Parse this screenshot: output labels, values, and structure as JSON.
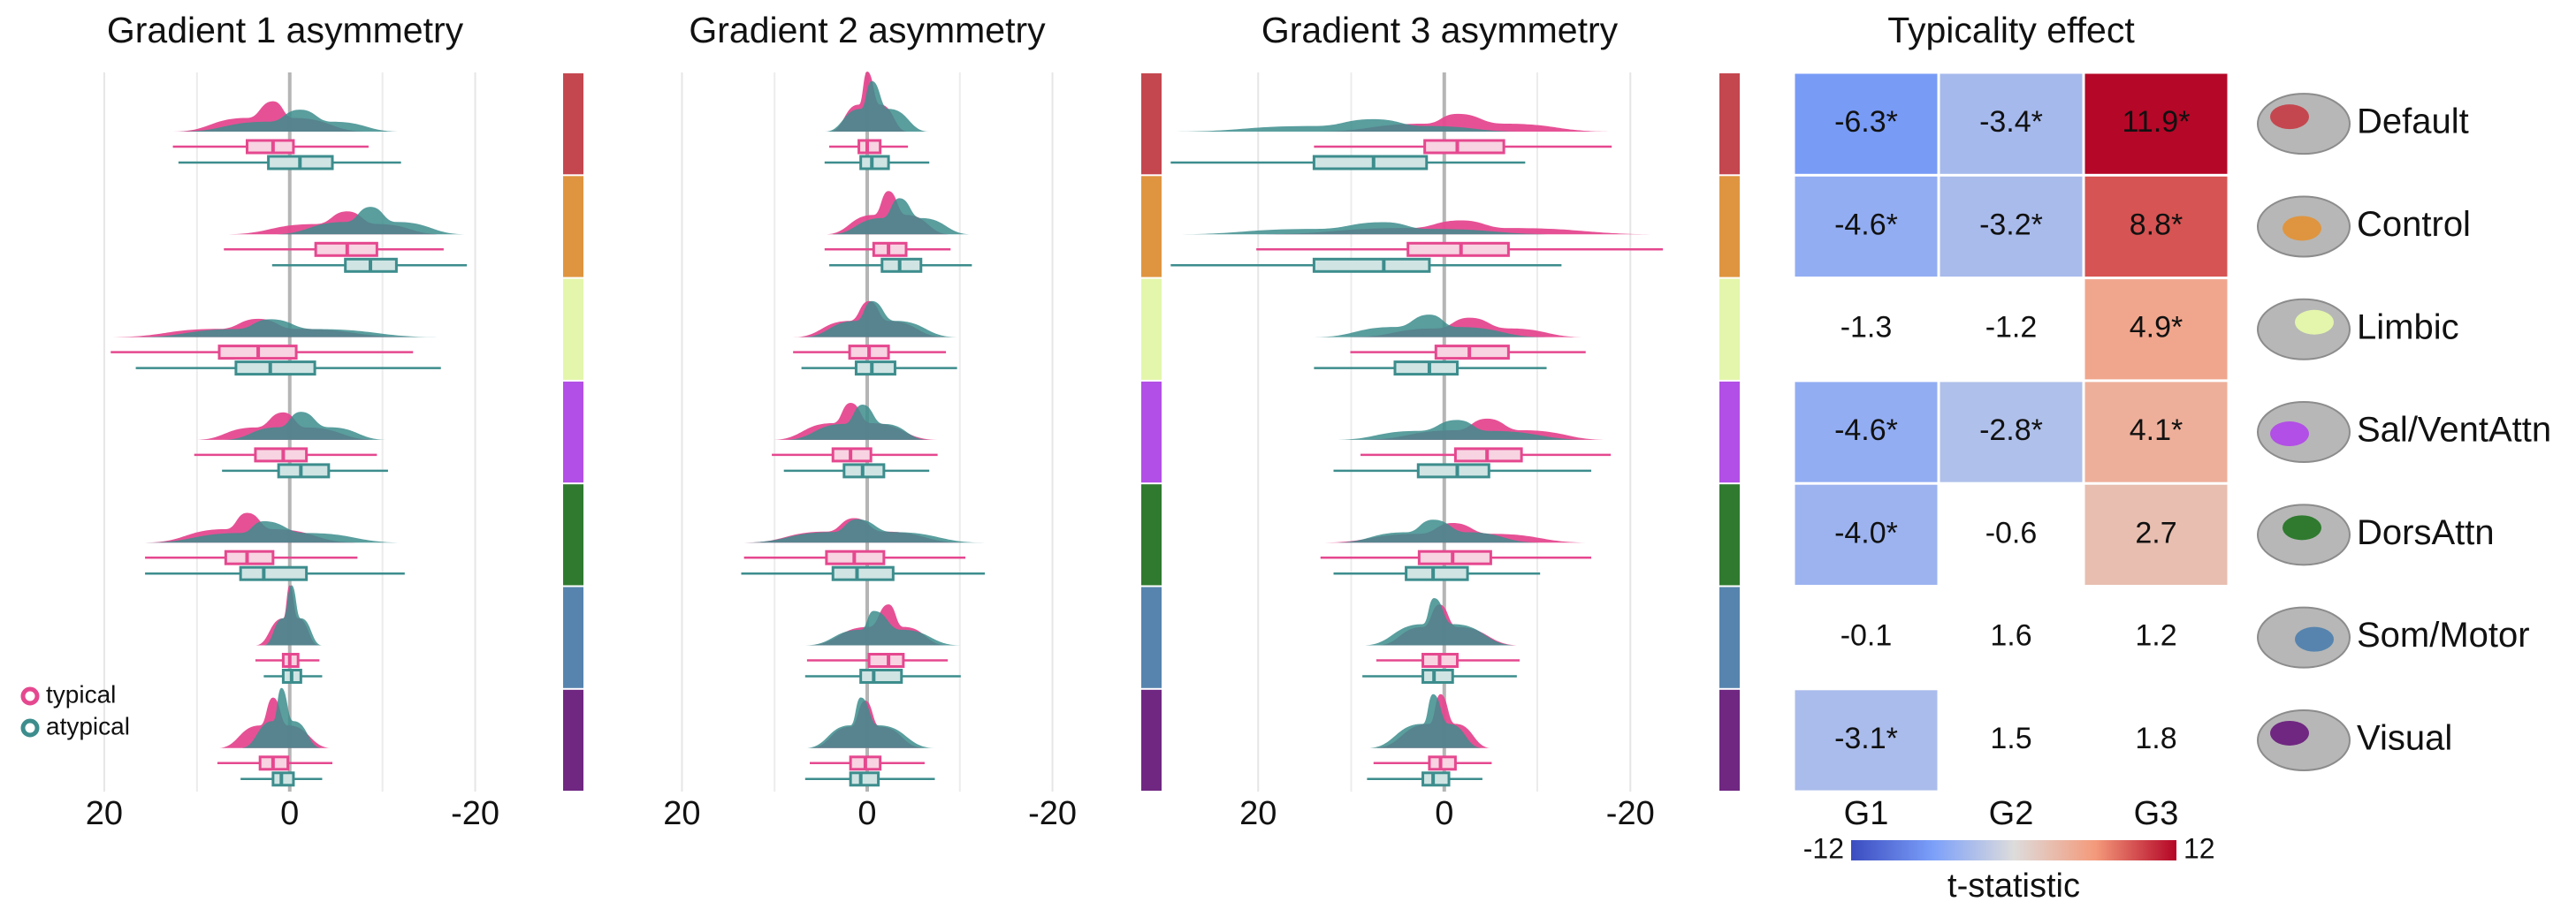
{
  "chart_data": [
    {
      "type": "raincloud",
      "title": "Gradient 1 asymmetry",
      "xlim": [
        28,
        -27
      ],
      "xticks": [
        20,
        0,
        -20
      ],
      "minor_xticks": [
        10,
        -10
      ],
      "grid": true,
      "legend": "lower left",
      "series": [
        {
          "name": "typical",
          "color": "#e5488f",
          "box_fill": "#f8d3e1",
          "boxes": [
            [
              12.6,
              4.6,
              1.8,
              -0.4,
              -8.5
            ],
            [
              7.1,
              -2.8,
              -6.2,
              -9.4,
              -16.6
            ],
            [
              19.3,
              7.6,
              3.4,
              -0.7,
              -13.3
            ],
            [
              10.3,
              3.7,
              0.7,
              -1.8,
              -9.4
            ],
            [
              15.6,
              6.9,
              4.6,
              1.8,
              -7.3
            ],
            [
              3.7,
              0.7,
              0,
              -0.9,
              -3.2
            ],
            [
              7.8,
              3.2,
              1.8,
              0.2,
              -4.6
            ]
          ]
        },
        {
          "name": "atypical",
          "color": "#3d8d8d",
          "box_fill": "#d0e4e4",
          "boxes": [
            [
              12,
              2.3,
              -1.1,
              -4.6,
              -12
            ],
            [
              1.9,
              -6,
              -8.7,
              -11.5,
              -19.1
            ],
            [
              16.6,
              5.8,
              2.1,
              -2.7,
              -16.3
            ],
            [
              7.3,
              1.2,
              -1.2,
              -4.2,
              -10.6
            ],
            [
              15.6,
              5.3,
              2.8,
              -1.8,
              -12.4
            ],
            [
              2.8,
              0.7,
              -0.2,
              -1.2,
              -3.5
            ],
            [
              5.3,
              1.8,
              0.9,
              -0.4,
              -3.5
            ]
          ]
        }
      ]
    },
    {
      "type": "raincloud",
      "title": "Gradient 2 asymmetry",
      "xlim": [
        23,
        -23
      ],
      "xticks": [
        20,
        0,
        -20
      ],
      "minor_xticks": [
        10,
        -10
      ],
      "grid": true,
      "series": [
        {
          "name": "typical",
          "color": "#e5488f",
          "box_fill": "#f8d3e1",
          "boxes": [
            [
              4.1,
              0.9,
              0,
              -1.4,
              -4.4
            ],
            [
              4.6,
              -0.7,
              -2.3,
              -4.2,
              -9
            ],
            [
              8,
              1.9,
              -0.2,
              -2.3,
              -8.5
            ],
            [
              10.3,
              3.7,
              1.8,
              -0.4,
              -7.6
            ],
            [
              13.3,
              4.4,
              1.4,
              -1.8,
              -10.6
            ],
            [
              6.5,
              -0.2,
              -2.3,
              -3.9,
              -8.7
            ],
            [
              6.2,
              1.8,
              0.2,
              -1.4,
              -6.2
            ]
          ]
        },
        {
          "name": "atypical",
          "color": "#3d8d8d",
          "box_fill": "#d0e4e4",
          "boxes": [
            [
              4.6,
              0.7,
              -0.5,
              -2.3,
              -6.7
            ],
            [
              4.1,
              -1.6,
              -3.5,
              -5.8,
              -11.3
            ],
            [
              7.1,
              1.2,
              -0.5,
              -3,
              -9.7
            ],
            [
              9,
              2.5,
              0.5,
              -1.8,
              -6.7
            ],
            [
              13.6,
              3.7,
              1.1,
              -2.8,
              -12.7
            ],
            [
              6.7,
              0.7,
              -0.7,
              -3.7,
              -10.1
            ],
            [
              6.7,
              1.8,
              0.7,
              -1.2,
              -7.3
            ]
          ]
        }
      ]
    },
    {
      "type": "raincloud",
      "title": "Gradient 3 asymmetry",
      "xlim": [
        30,
        -29
      ],
      "xticks": [
        20,
        0,
        -20
      ],
      "minor_xticks": [
        10,
        -10
      ],
      "grid": true,
      "series": [
        {
          "name": "typical",
          "color": "#e5488f",
          "box_fill": "#f8d3e1",
          "boxes": [
            [
              14,
              2.1,
              -1.4,
              -6.4,
              -18
            ],
            [
              20.2,
              3.9,
              -1.8,
              -6.9,
              -23.5
            ],
            [
              10.1,
              0.9,
              -2.7,
              -6.9,
              -15.2
            ],
            [
              9,
              -1.2,
              -4.6,
              -8.3,
              -17.9
            ],
            [
              13.3,
              2.7,
              -0.9,
              -5,
              -15.8
            ],
            [
              7.3,
              2.3,
              0.5,
              -1.4,
              -8.1
            ],
            [
              7.6,
              1.6,
              0.4,
              -1.2,
              -5.1
            ]
          ]
        },
        {
          "name": "atypical",
          "color": "#3d8d8d",
          "box_fill": "#d0e4e4",
          "boxes": [
            [
              29.4,
              14,
              7.6,
              1.9,
              -8.7
            ],
            [
              29.4,
              14,
              6.5,
              1.6,
              -12.6
            ],
            [
              14,
              5.3,
              1.6,
              -1.4,
              -11
            ],
            [
              11.9,
              2.8,
              -1.4,
              -4.8,
              -15.8
            ],
            [
              11.9,
              4.1,
              1.2,
              -2.5,
              -10.3
            ],
            [
              8.8,
              2.3,
              1.1,
              -0.9,
              -7.8
            ],
            [
              8.3,
              2.3,
              1.2,
              -0.5,
              -4.1
            ]
          ]
        }
      ]
    },
    {
      "type": "heatmap",
      "title": "Typicality effect",
      "rows": [
        "Default",
        "Control",
        "Limbic",
        "Sal/VentAttn",
        "DorsAttn",
        "Som/Motor",
        "Visual"
      ],
      "row_colors": [
        "#c4474f",
        "#df953f",
        "#e3f6ab",
        "#b24fe6",
        "#2f7a2f",
        "#5684ae",
        "#6f2781"
      ],
      "categories": [
        "G1",
        "G2",
        "G3"
      ],
      "values": [
        [
          -6.3,
          -3.4,
          11.9
        ],
        [
          -4.6,
          -3.2,
          8.8
        ],
        [
          -1.3,
          -1.2,
          4.9
        ],
        [
          -4.6,
          -2.8,
          4.1
        ],
        [
          -4,
          -0.6,
          2.7
        ],
        [
          -0.1,
          1.6,
          1.2
        ],
        [
          -3.1,
          1.5,
          1.8
        ]
      ],
      "value_labels": [
        [
          "-6.3*",
          "-3.4*",
          "11.9*"
        ],
        [
          "-4.6*",
          "-3.2*",
          "8.8*"
        ],
        [
          "-1.3",
          "-1.2",
          "4.9*"
        ],
        [
          "-4.6*",
          "-2.8*",
          "4.1*"
        ],
        [
          "-4.0*",
          "-0.6",
          "2.7"
        ],
        [
          "-0.1",
          "1.6",
          "1.2"
        ],
        [
          "-3.1*",
          "1.5",
          "1.8"
        ]
      ],
      "shaded": [
        [
          true,
          true,
          true
        ],
        [
          true,
          true,
          true
        ],
        [
          false,
          false,
          true
        ],
        [
          true,
          true,
          true
        ],
        [
          true,
          false,
          true
        ],
        [
          false,
          false,
          false
        ],
        [
          true,
          false,
          false
        ]
      ],
      "clim": [
        -12,
        12
      ],
      "cticks": [
        -12,
        12
      ],
      "colormap": [
        "#3b4cc0",
        "#7b9ff9",
        "#dddcdc",
        "#f49a7b",
        "#b40426"
      ],
      "colorbar_label": "t-statistic"
    }
  ]
}
